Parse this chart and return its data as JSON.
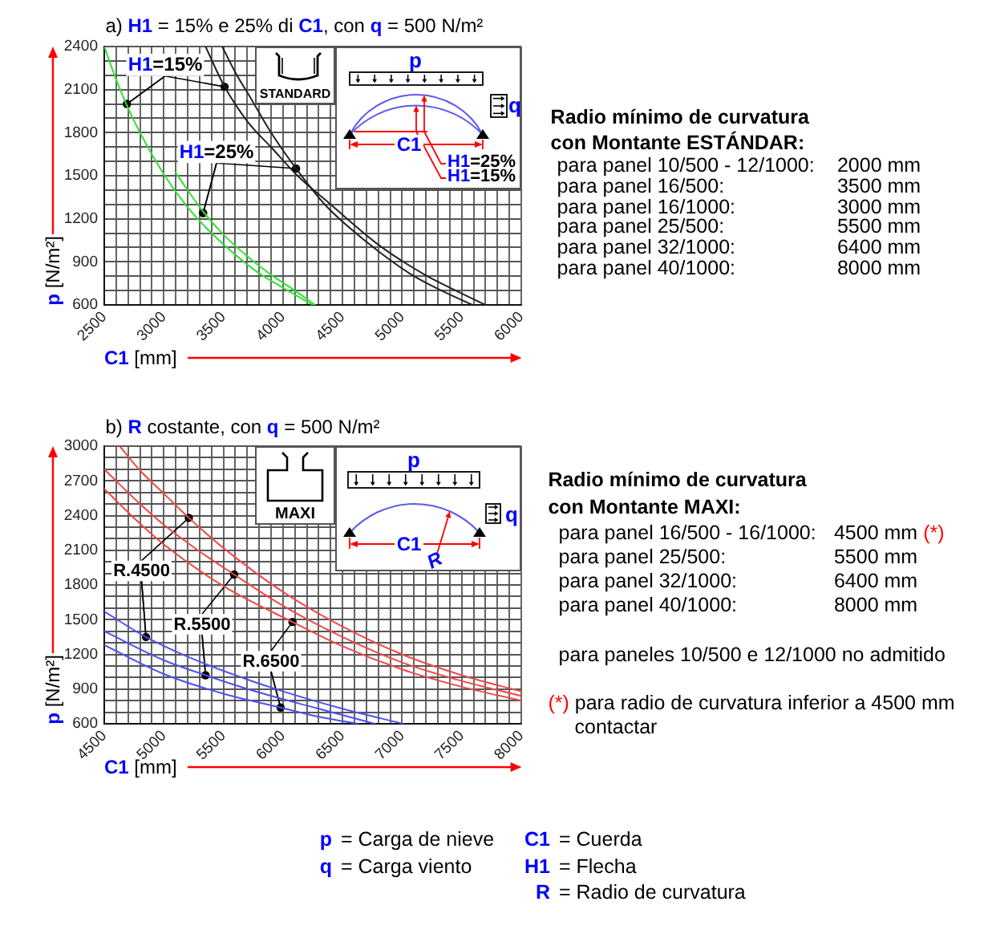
{
  "chart_data": [
    {
      "type": "line",
      "title": "a) H1 = 15% e 25% di C1, con q = 500 N/m²",
      "xlabel": "C1 [mm]",
      "ylabel": "p [N/m²]",
      "xlim": [
        2500,
        6000
      ],
      "ylim": [
        600,
        2400
      ],
      "xticks": [
        2500,
        {
          "value": 2600,
          "label": null
        },
        {
          "value": 2700,
          "label": null
        },
        {
          "value": 2800,
          "label": null
        },
        {
          "value": 2900,
          "label": null
        },
        3000,
        {
          "value": 3100,
          "label": null
        },
        {
          "value": 3200,
          "label": null
        },
        {
          "value": 3300,
          "label": null
        },
        {
          "value": 3400,
          "label": null
        },
        3500,
        {
          "value": 3600,
          "label": null
        },
        {
          "value": 3700,
          "label": null
        },
        {
          "value": 3800,
          "label": null
        },
        {
          "value": 3900,
          "label": null
        },
        4000,
        {
          "value": 4100,
          "label": null
        },
        {
          "value": 4200,
          "label": null
        },
        {
          "value": 4300,
          "label": null
        },
        {
          "value": 4400,
          "label": null
        },
        4500,
        {
          "value": 4600,
          "label": null
        },
        {
          "value": 4700,
          "label": null
        },
        {
          "value": 4800,
          "label": null
        },
        {
          "value": 4900,
          "label": null
        },
        5000,
        {
          "value": 5100,
          "label": null
        },
        {
          "value": 5200,
          "label": null
        },
        {
          "value": 5300,
          "label": null
        },
        {
          "value": 5400,
          "label": null
        },
        5500,
        {
          "value": 5600,
          "label": null
        },
        {
          "value": 5700,
          "label": null
        },
        {
          "value": 5800,
          "label": null
        },
        {
          "value": 5900,
          "label": null
        },
        6000
      ],
      "yticks": [
        600,
        {
          "value": 700,
          "label": null
        },
        {
          "value": 800,
          "label": null
        },
        900,
        {
          "value": 1000,
          "label": null
        },
        {
          "value": 1100,
          "label": null
        },
        1200,
        {
          "value": 1300,
          "label": null
        },
        {
          "value": 1400,
          "label": null
        },
        1500,
        {
          "value": 1600,
          "label": null
        },
        {
          "value": 1700,
          "label": null
        },
        1800,
        {
          "value": 1900,
          "label": null
        },
        {
          "value": 2000,
          "label": null
        },
        2100,
        {
          "value": 2200,
          "label": null
        },
        {
          "value": 2300,
          "label": null
        },
        2400
      ],
      "grid": true,
      "marker": "none",
      "series": [
        {
          "color": "#33e033",
          "x": [
            2500,
            2600,
            2700,
            2800,
            3000,
            3200,
            3400,
            3600,
            3800,
            4000,
            4250
          ],
          "values": [
            2400,
            2170,
            1970,
            1800,
            1510,
            1280,
            1100,
            950,
            820,
            720,
            600
          ]
        },
        {
          "color": "#33e033",
          "x": [
            3100,
            3200,
            3330,
            3500,
            3700,
            3900,
            4100,
            4270
          ],
          "values": [
            1520,
            1400,
            1250,
            1090,
            940,
            810,
            700,
            600
          ]
        },
        {
          "color": "#222222",
          "x": [
            3350,
            3510,
            3700,
            3910,
            4110,
            4400,
            4800,
            5190,
            5450,
            5700
          ],
          "values": [
            2400,
            2120,
            1880,
            1690,
            1510,
            1300,
            1020,
            810,
            700,
            600
          ]
        },
        {
          "color": "#222222",
          "x": [
            3490,
            3600,
            3730,
            3900,
            4110,
            4350,
            4700,
            5080,
            5330,
            5590
          ],
          "values": [
            2400,
            2220,
            2040,
            1800,
            1550,
            1300,
            1040,
            810,
            700,
            600
          ]
        },
        {
          "type": "scatter",
          "marker": "circle",
          "color": "#000000",
          "x": [
            2690,
            3510
          ],
          "values": [
            2000,
            2120
          ]
        },
        {
          "type": "scatter",
          "marker": "circle",
          "color": "#000000",
          "x": [
            3330,
            4110
          ],
          "values": [
            1240,
            1550
          ]
        }
      ],
      "annotations": [
        {
          "text": "H1=15%",
          "x": 2690,
          "y": 2000
        },
        {
          "text": "H1=25%",
          "x": 3330,
          "y": 1240
        },
        "STANDARD",
        "p",
        "q",
        "C1",
        "H1=25%",
        "H1=15%"
      ]
    },
    {
      "type": "other",
      "title": "Radio mínimo de curvatura",
      "subtitle": "con Montante ESTÁNDAR:",
      "annotations": [
        "para panel 10/500 - 12/1000:  2000 mm",
        "para panel 16/500:  3500 mm",
        "para panel 16/1000:  3000 mm",
        "para panel 25/500:  5500 mm",
        "para panel 32/1000:  6400 mm",
        "para panel 40/1000:  8000 mm"
      ]
    },
    {
      "type": "line",
      "title": "b) R costante, con q = 500 N/m²",
      "xlabel": "C1 [mm]",
      "ylabel": "p [N/m²]",
      "xlim": [
        4500,
        8000
      ],
      "ylim": [
        600,
        3000
      ],
      "xticks": [
        4500,
        {
          "value": 4600,
          "label": null
        },
        {
          "value": 4700,
          "label": null
        },
        {
          "value": 4800,
          "label": null
        },
        {
          "value": 4900,
          "label": null
        },
        5000,
        {
          "value": 5100,
          "label": null
        },
        {
          "value": 5200,
          "label": null
        },
        {
          "value": 5300,
          "label": null
        },
        {
          "value": 5400,
          "label": null
        },
        5500,
        {
          "value": 5600,
          "label": null
        },
        {
          "value": 5700,
          "label": null
        },
        {
          "value": 5800,
          "label": null
        },
        {
          "value": 5900,
          "label": null
        },
        6000,
        {
          "value": 6100,
          "label": null
        },
        {
          "value": 6200,
          "label": null
        },
        {
          "value": 6300,
          "label": null
        },
        {
          "value": 6400,
          "label": null
        },
        6500,
        {
          "value": 6600,
          "label": null
        },
        {
          "value": 6700,
          "label": null
        },
        {
          "value": 6800,
          "label": null
        },
        {
          "value": 6900,
          "label": null
        },
        7000,
        {
          "value": 7100,
          "label": null
        },
        {
          "value": 7200,
          "label": null
        },
        {
          "value": 7300,
          "label": null
        },
        {
          "value": 7400,
          "label": null
        },
        7500,
        {
          "value": 7600,
          "label": null
        },
        {
          "value": 7700,
          "label": null
        },
        {
          "value": 7800,
          "label": null
        },
        {
          "value": 7900,
          "label": null
        },
        8000
      ],
      "yticks": [
        600,
        {
          "value": 700,
          "label": null
        },
        {
          "value": 800,
          "label": null
        },
        900,
        {
          "value": 1000,
          "label": null
        },
        {
          "value": 1100,
          "label": null
        },
        1200,
        {
          "value": 1300,
          "label": null
        },
        {
          "value": 1400,
          "label": null
        },
        1500,
        {
          "value": 1600,
          "label": null
        },
        {
          "value": 1700,
          "label": null
        },
        1800,
        {
          "value": 1900,
          "label": null
        },
        {
          "value": 2000,
          "label": null
        },
        2100,
        {
          "value": 2200,
          "label": null
        },
        {
          "value": 2300,
          "label": null
        },
        2400,
        {
          "value": 2500,
          "label": null
        },
        {
          "value": 2600,
          "label": null
        },
        2700,
        {
          "value": 2800,
          "label": null
        },
        {
          "value": 2900,
          "label": null
        },
        3000
      ],
      "grid": true,
      "marker": "none",
      "series": [
        {
          "color": "#f04848",
          "x": [
            4630,
            4800,
            5000,
            5210,
            5500,
            6000,
            6500,
            7000,
            7500,
            8000
          ],
          "values": [
            3000,
            2790,
            2590,
            2380,
            2120,
            1740,
            1440,
            1200,
            1020,
            880
          ]
        },
        {
          "color": "#f04848",
          "x": [
            4500,
            4800,
            5000,
            5300,
            5590,
            6000,
            6500,
            7000,
            7500,
            8000
          ],
          "values": [
            2800,
            2500,
            2320,
            2090,
            1890,
            1620,
            1350,
            1130,
            970,
            840
          ]
        },
        {
          "color": "#f04848",
          "x": [
            4500,
            4800,
            5000,
            5500,
            6080,
            6500,
            7000,
            7500,
            8000
          ],
          "values": [
            2630,
            2330,
            2150,
            1790,
            1480,
            1270,
            1070,
            920,
            800
          ]
        },
        {
          "color": "#5050f0",
          "x": [
            4500,
            4850,
            5200,
            5600,
            6000,
            6500,
            7010
          ],
          "values": [
            1570,
            1350,
            1180,
            1020,
            880,
            730,
            600
          ]
        },
        {
          "color": "#5050f0",
          "x": [
            4500,
            5000,
            5350,
            5800,
            6300,
            6770
          ],
          "values": [
            1400,
            1150,
            1020,
            870,
            730,
            600
          ]
        },
        {
          "color": "#5050f0",
          "x": [
            4500,
            5000,
            5500,
            5980,
            6300,
            6630
          ],
          "values": [
            1280,
            1030,
            860,
            740,
            660,
            600
          ]
        },
        {
          "type": "scatter",
          "marker": "circle",
          "color": "#000000",
          "x": [
            4850,
            5210
          ],
          "values": [
            1350,
            2380
          ]
        },
        {
          "type": "scatter",
          "marker": "circle",
          "color": "#000000",
          "x": [
            5350,
            5590
          ],
          "values": [
            1020,
            1890
          ]
        },
        {
          "type": "scatter",
          "marker": "circle",
          "color": "#000000",
          "x": [
            5980,
            6080
          ],
          "values": [
            740,
            1480
          ]
        }
      ],
      "annotations": [
        {
          "text": "R.4500",
          "x": 4850,
          "y": 1350
        },
        {
          "text": "R.5500",
          "x": 5350,
          "y": 1020
        },
        {
          "text": "R.6500",
          "x": 5980,
          "y": 740
        },
        "MAXI",
        "p",
        "q",
        "C1",
        "R"
      ]
    },
    {
      "type": "other",
      "title": "Radio mínimo de curvatura",
      "subtitle": "con Montante MAXI:",
      "annotations": [
        "para panel 16/500 - 16/1000:  4500 mm (*)",
        "para panel 25/500:  5500 mm",
        "para panel 32/1000:  6400 mm",
        "para panel 40/1000:  8000 mm",
        "para paneles 10/500 e 12/1000 no admitido",
        "(*) para radio de curvatura inferior a 4500 mm contactar"
      ]
    },
    {
      "type": "other",
      "annotations": [
        "p = Carga de nieve",
        "C1 = Cuerda",
        "q = Carga viento",
        "H1 = Flecha",
        "R = Radio de curvatura"
      ]
    }
  ]
}
